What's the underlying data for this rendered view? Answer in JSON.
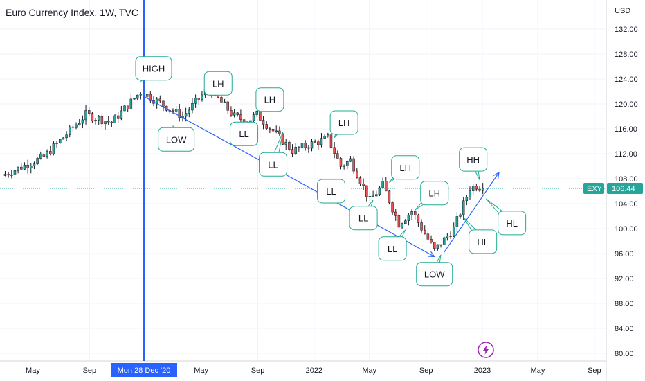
{
  "chart_data": {
    "type": "candlestick",
    "title": "Euro Currency Index, 1W, TVC",
    "currency": "USD",
    "y_ticks": [
      132,
      128,
      124,
      120,
      116,
      112,
      108,
      104,
      100,
      96,
      92,
      88,
      84,
      80
    ],
    "y_tick_labels": [
      "132.00",
      "128.00",
      "124.00",
      "120.00",
      "116.00",
      "112.00",
      "108.00",
      "104.00",
      "100.00",
      "96.00",
      "92.00",
      "88.00",
      "84.00",
      "80.00"
    ],
    "ylim": [
      79.5,
      134.5
    ],
    "x_labels": [
      "May",
      "Sep",
      "Mon 28 Dec '20",
      "May",
      "Sep",
      "2022",
      "May",
      "Sep",
      "2023",
      "May",
      "Sep"
    ],
    "x_label_dates": [
      "2020-05-01",
      "2020-09-01",
      "2020-12-28",
      "2021-05-01",
      "2021-09-01",
      "2022-01-01",
      "2022-05-01",
      "2022-09-01",
      "2023-01-01",
      "2023-05-01",
      "2023-09-01"
    ],
    "crosshair_date": "2020-12-28",
    "symbol_badge": "EXY",
    "last_price": 106.44,
    "last_price_label": "106.44",
    "colors": {
      "up": "#26a69a",
      "down": "#ef5350",
      "crosshair": "#2962ff",
      "trend": "#2962ff",
      "callout_border": "#22ab94",
      "price_badge": "#26a69a",
      "badge_icon": "#9c27b0"
    },
    "anchors": [
      {
        "date": "2020-03-02",
        "price": 108.5
      },
      {
        "date": "2020-06-01",
        "price": 111.5
      },
      {
        "date": "2020-08-31",
        "price": 118.3
      },
      {
        "date": "2020-10-26",
        "price": 117.0
      },
      {
        "date": "2020-12-28",
        "price": 122.0
      },
      {
        "date": "2021-03-29",
        "price": 118.0
      },
      {
        "date": "2021-05-24",
        "price": 122.5
      },
      {
        "date": "2021-07-19",
        "price": 118.0
      },
      {
        "date": "2021-08-16",
        "price": 117.2
      },
      {
        "date": "2021-09-06",
        "price": 118.3
      },
      {
        "date": "2021-11-22",
        "price": 112.5
      },
      {
        "date": "2022-02-07",
        "price": 114.5
      },
      {
        "date": "2022-03-07",
        "price": 110.0
      },
      {
        "date": "2022-03-28",
        "price": 111.0
      },
      {
        "date": "2022-05-09",
        "price": 104.5
      },
      {
        "date": "2022-06-06",
        "price": 107.0
      },
      {
        "date": "2022-07-11",
        "price": 100.8
      },
      {
        "date": "2022-08-08",
        "price": 102.8
      },
      {
        "date": "2022-09-26",
        "price": 96.5
      },
      {
        "date": "2022-11-07",
        "price": 100.0
      },
      {
        "date": "2022-12-12",
        "price": 106.5
      },
      {
        "date": "2022-12-26",
        "price": 106.9
      },
      {
        "date": "2023-01-09",
        "price": 106.44
      }
    ],
    "trendlines": [
      {
        "from": {
          "date": "2020-12-28",
          "price": 121.2
        },
        "to": {
          "date": "2022-09-19",
          "price": 95.5
        }
      },
      {
        "from": {
          "date": "2022-10-10",
          "price": 96.2
        },
        "to": {
          "date": "2023-02-06",
          "price": 109.0
        }
      }
    ],
    "annotations": [
      {
        "text": "HIGH",
        "box": {
          "date": "2021-01-18",
          "price": 125.7
        },
        "pointer": {
          "date": "2020-12-21",
          "price": 123.6
        }
      },
      {
        "text": "LOW",
        "box": {
          "date": "2021-03-08",
          "price": 114.3
        },
        "pointer": {
          "date": "2021-03-01",
          "price": 116.5
        }
      },
      {
        "text": "LH",
        "box": {
          "date": "2021-06-07",
          "price": 123.3
        },
        "pointer": {
          "date": "2021-05-17",
          "price": 122.5
        }
      },
      {
        "text": "LL",
        "box": {
          "date": "2021-08-02",
          "price": 115.2
        },
        "pointer": {
          "date": "2021-08-09",
          "price": 117.3
        }
      },
      {
        "text": "LH",
        "box": {
          "date": "2021-09-27",
          "price": 120.7
        },
        "pointer": {
          "date": "2021-09-06",
          "price": 118.6
        }
      },
      {
        "text": "LL",
        "box": {
          "date": "2021-10-04",
          "price": 110.3
        },
        "pointer": {
          "date": "2021-10-25",
          "price": 115.4
        }
      },
      {
        "text": "LH",
        "box": {
          "date": "2022-03-07",
          "price": 117.0
        },
        "pointer": {
          "date": "2022-02-14",
          "price": 114.6
        }
      },
      {
        "text": "LL",
        "box": {
          "date": "2022-02-07",
          "price": 106.0
        },
        "pointer": {
          "date": "2022-03-07",
          "price": 107.4
        }
      },
      {
        "text": "LH",
        "box": {
          "date": "2022-07-18",
          "price": 109.8
        },
        "pointer": {
          "date": "2022-06-13",
          "price": 107.4
        }
      },
      {
        "text": "LL",
        "box": {
          "date": "2022-04-18",
          "price": 101.7
        },
        "pointer": {
          "date": "2022-05-09",
          "price": 104.6
        }
      },
      {
        "text": "LH",
        "box": {
          "date": "2022-09-19",
          "price": 105.7
        },
        "pointer": {
          "date": "2022-08-08",
          "price": 103.0
        }
      },
      {
        "text": "LL",
        "box": {
          "date": "2022-06-20",
          "price": 96.8
        },
        "pointer": {
          "date": "2022-07-18",
          "price": 99.8
        }
      },
      {
        "text": "HH",
        "box": {
          "date": "2022-12-12",
          "price": 111.1
        },
        "pointer": {
          "date": "2022-12-26",
          "price": 107.8
        }
      },
      {
        "text": "LOW",
        "box": {
          "date": "2022-09-19",
          "price": 92.7
        },
        "pointer": {
          "date": "2022-10-03",
          "price": 95.8
        }
      },
      {
        "text": "HL",
        "box": {
          "date": "2023-03-06",
          "price": 100.9
        },
        "pointer": {
          "date": "2023-01-09",
          "price": 104.8
        }
      },
      {
        "text": "HL",
        "box": {
          "date": "2023-01-02",
          "price": 97.9
        },
        "pointer": {
          "date": "2022-11-21",
          "price": 101.8
        }
      }
    ]
  }
}
